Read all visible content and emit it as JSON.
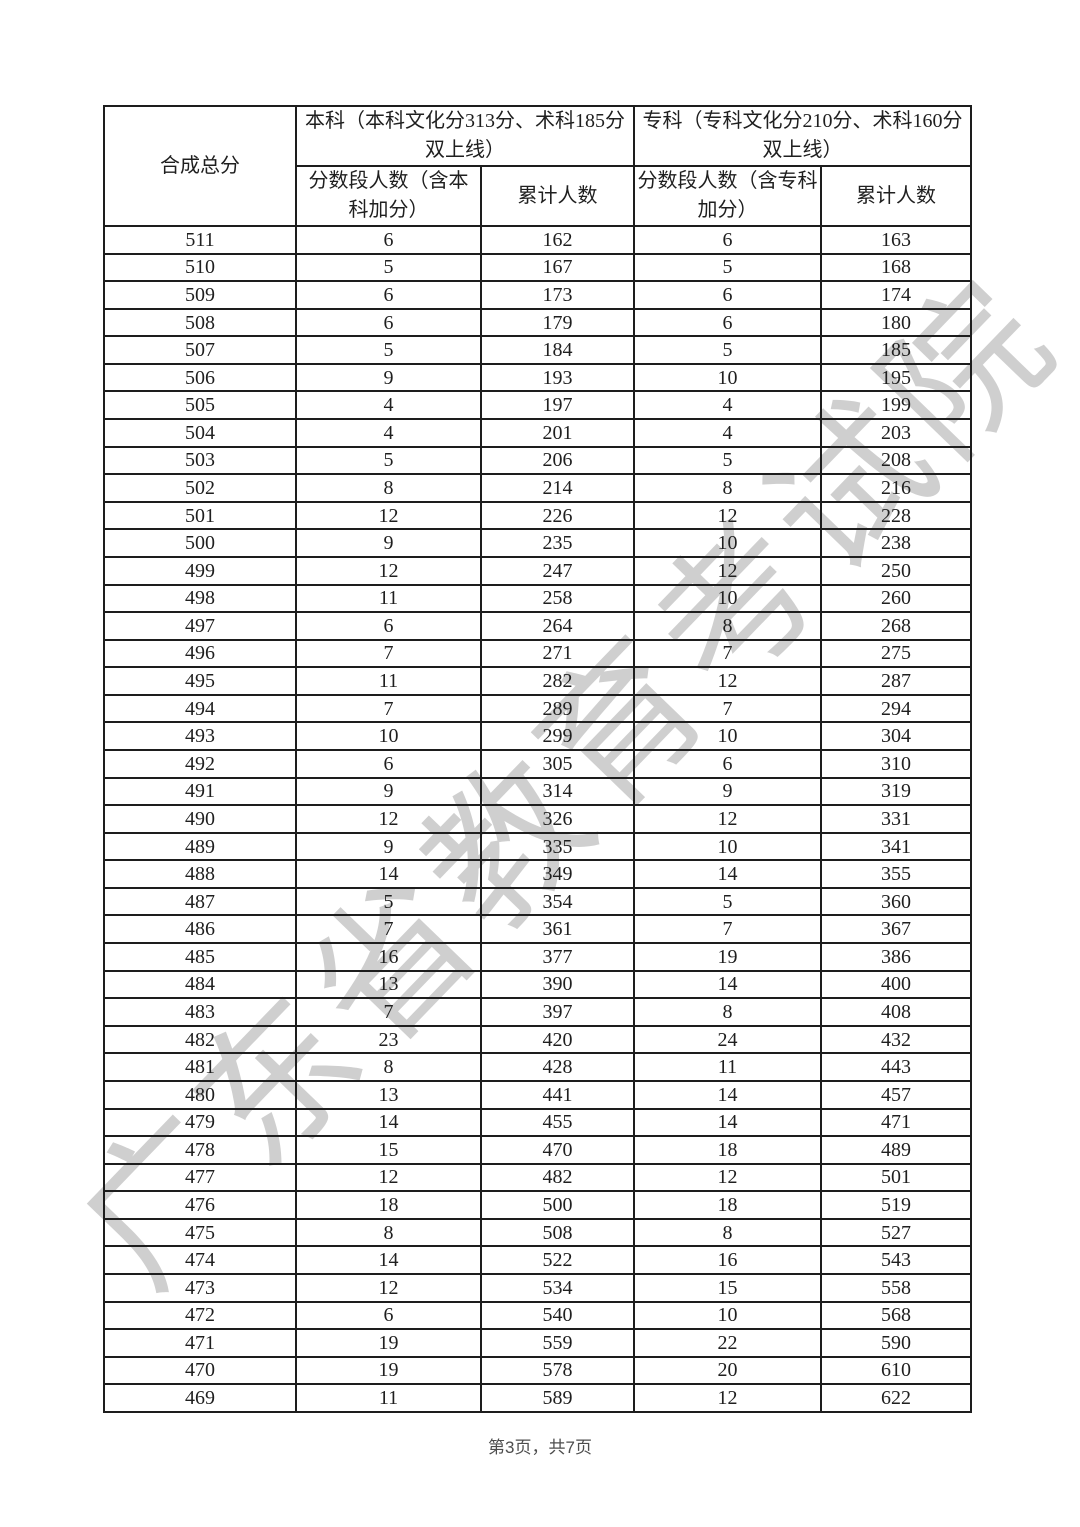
{
  "watermark": {
    "text": "广东省教育考试院",
    "color": "#949494"
  },
  "table": {
    "corner_header": "合成总分",
    "groups": [
      {
        "title": "本科（本科文化分313分、术科185分双上线）",
        "sub_count": "分数段人数（含本科加分）",
        "sub_cum": "累计人数"
      },
      {
        "title": "专科（专科文化分210分、术科160分双上线）",
        "sub_count": "分数段人数（含专科加分）",
        "sub_cum": "累计人数"
      }
    ],
    "rows": [
      [
        511,
        6,
        162,
        6,
        163
      ],
      [
        510,
        5,
        167,
        5,
        168
      ],
      [
        509,
        6,
        173,
        6,
        174
      ],
      [
        508,
        6,
        179,
        6,
        180
      ],
      [
        507,
        5,
        184,
        5,
        185
      ],
      [
        506,
        9,
        193,
        10,
        195
      ],
      [
        505,
        4,
        197,
        4,
        199
      ],
      [
        504,
        4,
        201,
        4,
        203
      ],
      [
        503,
        5,
        206,
        5,
        208
      ],
      [
        502,
        8,
        214,
        8,
        216
      ],
      [
        501,
        12,
        226,
        12,
        228
      ],
      [
        500,
        9,
        235,
        10,
        238
      ],
      [
        499,
        12,
        247,
        12,
        250
      ],
      [
        498,
        11,
        258,
        10,
        260
      ],
      [
        497,
        6,
        264,
        8,
        268
      ],
      [
        496,
        7,
        271,
        7,
        275
      ],
      [
        495,
        11,
        282,
        12,
        287
      ],
      [
        494,
        7,
        289,
        7,
        294
      ],
      [
        493,
        10,
        299,
        10,
        304
      ],
      [
        492,
        6,
        305,
        6,
        310
      ],
      [
        491,
        9,
        314,
        9,
        319
      ],
      [
        490,
        12,
        326,
        12,
        331
      ],
      [
        489,
        9,
        335,
        10,
        341
      ],
      [
        488,
        14,
        349,
        14,
        355
      ],
      [
        487,
        5,
        354,
        5,
        360
      ],
      [
        486,
        7,
        361,
        7,
        367
      ],
      [
        485,
        16,
        377,
        19,
        386
      ],
      [
        484,
        13,
        390,
        14,
        400
      ],
      [
        483,
        7,
        397,
        8,
        408
      ],
      [
        482,
        23,
        420,
        24,
        432
      ],
      [
        481,
        8,
        428,
        11,
        443
      ],
      [
        480,
        13,
        441,
        14,
        457
      ],
      [
        479,
        14,
        455,
        14,
        471
      ],
      [
        478,
        15,
        470,
        18,
        489
      ],
      [
        477,
        12,
        482,
        12,
        501
      ],
      [
        476,
        18,
        500,
        18,
        519
      ],
      [
        475,
        8,
        508,
        8,
        527
      ],
      [
        474,
        14,
        522,
        16,
        543
      ],
      [
        473,
        12,
        534,
        15,
        558
      ],
      [
        472,
        6,
        540,
        10,
        568
      ],
      [
        471,
        19,
        559,
        22,
        590
      ],
      [
        470,
        19,
        578,
        20,
        610
      ],
      [
        469,
        11,
        589,
        12,
        622
      ]
    ]
  },
  "footer": {
    "page_label": "第3页，共7页"
  }
}
